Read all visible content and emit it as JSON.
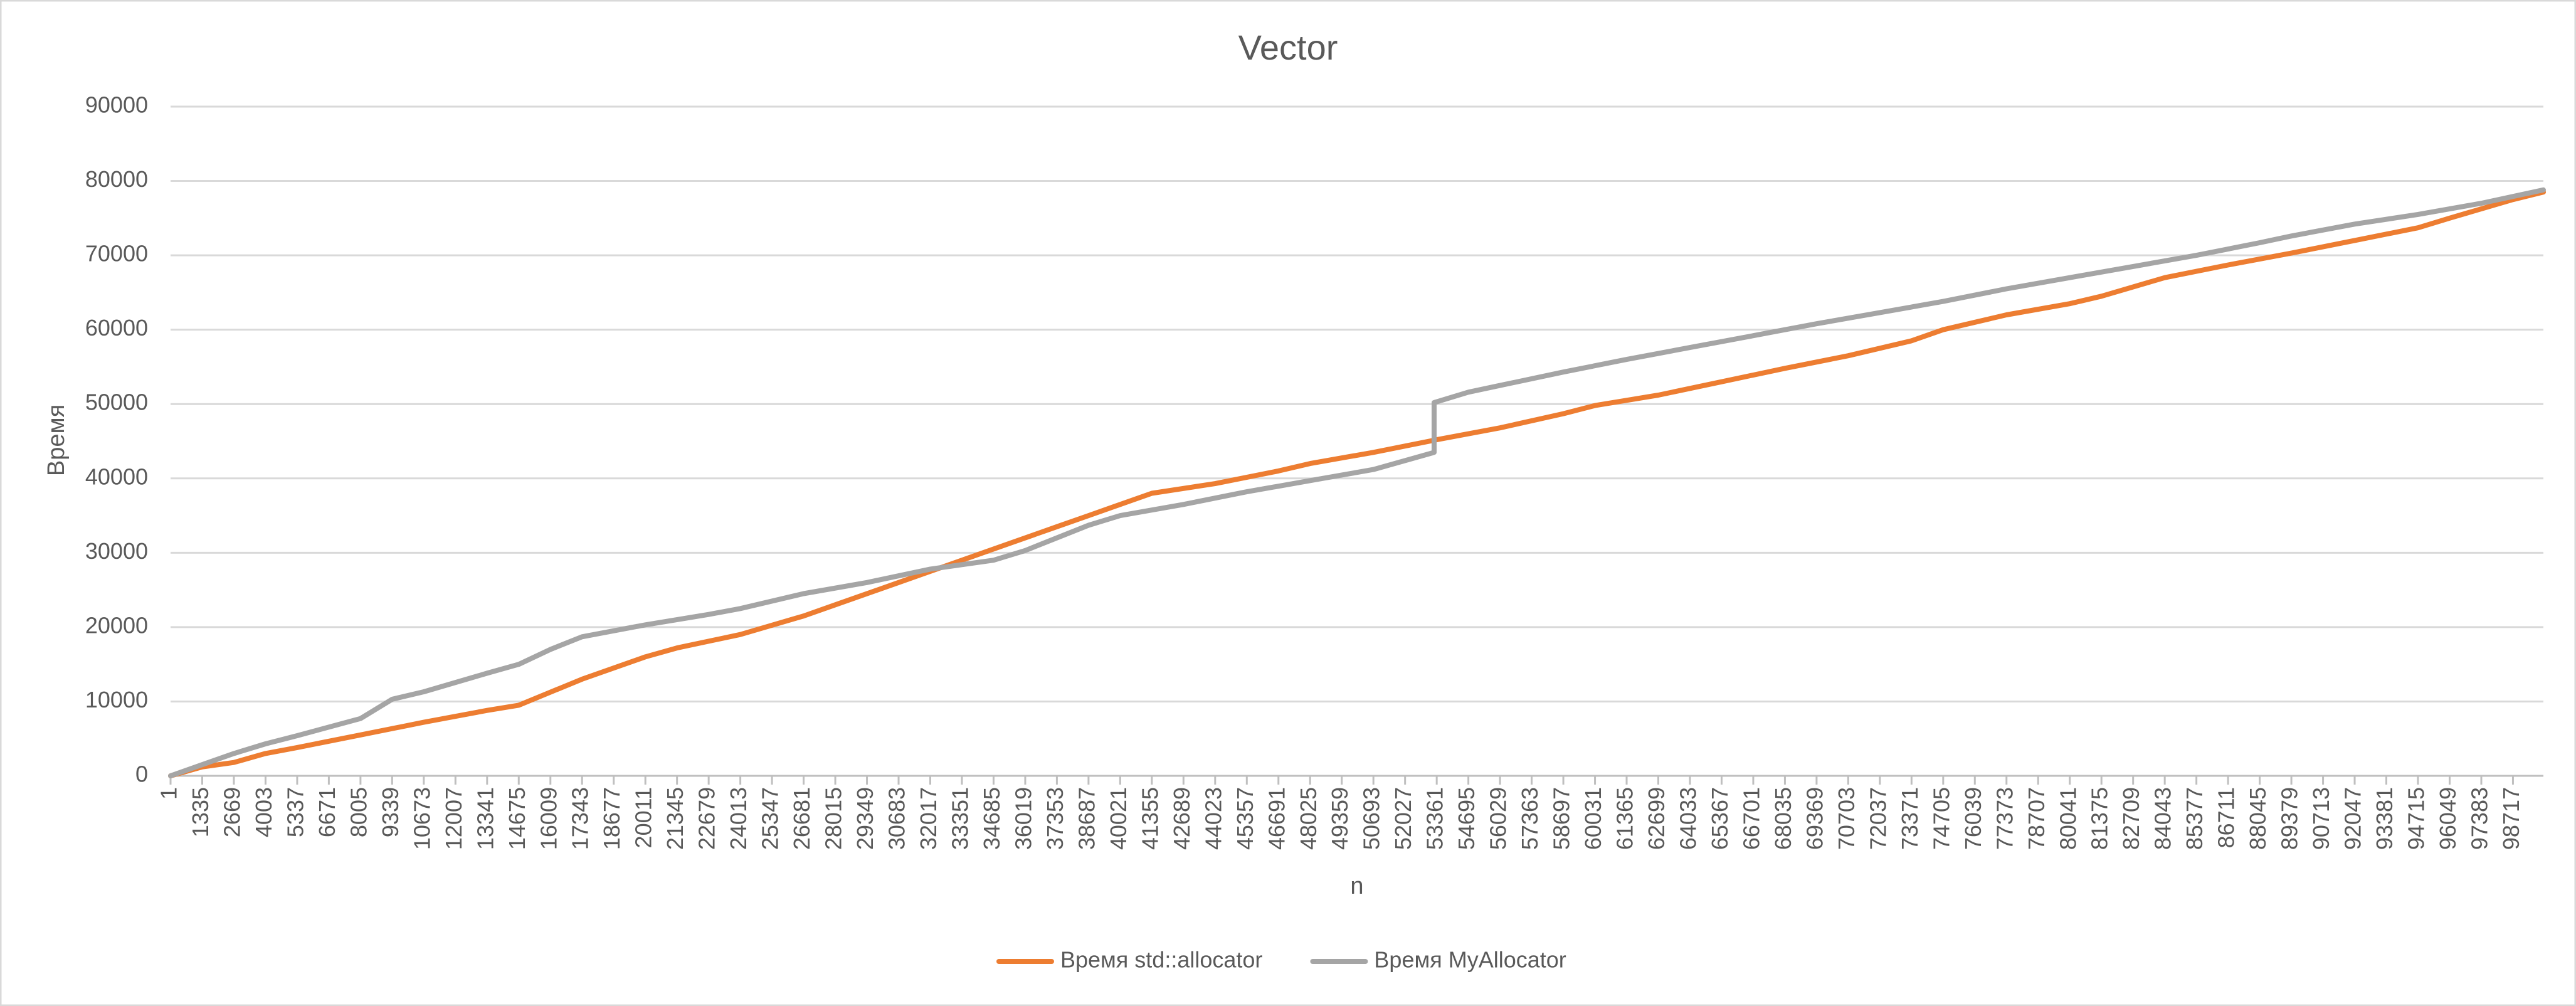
{
  "chart_data": {
    "type": "line",
    "title": "Vector",
    "x_label": "n",
    "y_label": "Время",
    "xlim": [
      1,
      100000
    ],
    "xticks": [
      1,
      1335,
      2669,
      4003,
      5337,
      6671,
      8005,
      9339,
      10673,
      12007,
      13341,
      14675,
      16009,
      17343,
      18677,
      20011,
      21345,
      22679,
      24013,
      25347,
      26681,
      28015,
      29349,
      30683,
      32017,
      33351,
      34685,
      36019,
      37353,
      38687,
      40021,
      41355,
      42689,
      44023,
      45357,
      46691,
      48025,
      49359,
      50693,
      52027,
      53361,
      54695,
      56029,
      57363,
      58697,
      60031,
      61365,
      62699,
      64033,
      65367,
      66701,
      68035,
      69369,
      70703,
      72037,
      73371,
      74705,
      76039,
      77373,
      78707,
      80041,
      81375,
      82709,
      84043,
      85377,
      86711,
      88045,
      89379,
      90713,
      92047,
      93381,
      94715,
      96049,
      97383,
      98717
    ],
    "ylim": [
      0,
      90000
    ],
    "yticks": [
      0,
      10000,
      20000,
      30000,
      40000,
      50000,
      60000,
      70000,
      80000,
      90000
    ],
    "grid": true,
    "legend": "bottom",
    "series": [
      {
        "name": "Время std::allocator",
        "color": "#ed7d31",
        "x": [
          1,
          1335,
          2669,
          4003,
          5337,
          8005,
          10673,
          13341,
          14675,
          17343,
          20011,
          21345,
          24013,
          26681,
          28015,
          30683,
          32017,
          34685,
          37353,
          38687,
          41355,
          44023,
          46691,
          48025,
          50693,
          53361,
          56029,
          58697,
          60031,
          62699,
          65367,
          68035,
          70703,
          73371,
          74705,
          77373,
          80041,
          81375,
          84043,
          86711,
          89379,
          92047,
          94715,
          96049,
          98717,
          100000
        ],
        "values": [
          0,
          1200,
          1800,
          3000,
          3800,
          5500,
          7200,
          8800,
          9500,
          13000,
          16000,
          17200,
          19000,
          21500,
          23000,
          26000,
          27500,
          30500,
          33500,
          35000,
          38000,
          39300,
          41000,
          42000,
          43500,
          45200,
          46800,
          48700,
          49800,
          51200,
          53000,
          54800,
          56500,
          58500,
          60000,
          62000,
          63500,
          64500,
          67000,
          68700,
          70300,
          72000,
          73700,
          75000,
          77500,
          78500
        ]
      },
      {
        "name": "Время MyAllocator",
        "color": "#a5a5a5",
        "x": [
          1,
          1335,
          2669,
          4003,
          5337,
          8005,
          9339,
          10673,
          13341,
          14675,
          16009,
          17343,
          20011,
          22679,
          24013,
          26681,
          29349,
          32017,
          34685,
          36019,
          37353,
          38687,
          40021,
          42689,
          45357,
          48025,
          50693,
          53250,
          53250,
          54695,
          56029,
          58697,
          61365,
          64033,
          66701,
          69369,
          72037,
          74705,
          77373,
          80041,
          82709,
          85377,
          88045,
          89379,
          92047,
          94715,
          97383,
          100000
        ],
        "values": [
          0,
          1500,
          3000,
          4300,
          5400,
          7700,
          10300,
          11300,
          13800,
          15000,
          17000,
          18700,
          20300,
          21700,
          22500,
          24500,
          26000,
          27800,
          29000,
          30300,
          32000,
          33700,
          35000,
          36500,
          38200,
          39700,
          41200,
          43500,
          50200,
          51600,
          52500,
          54300,
          56000,
          57600,
          59200,
          60800,
          62300,
          63800,
          65500,
          67000,
          68500,
          70000,
          71700,
          72600,
          74200,
          75500,
          77000,
          78800
        ]
      }
    ]
  }
}
